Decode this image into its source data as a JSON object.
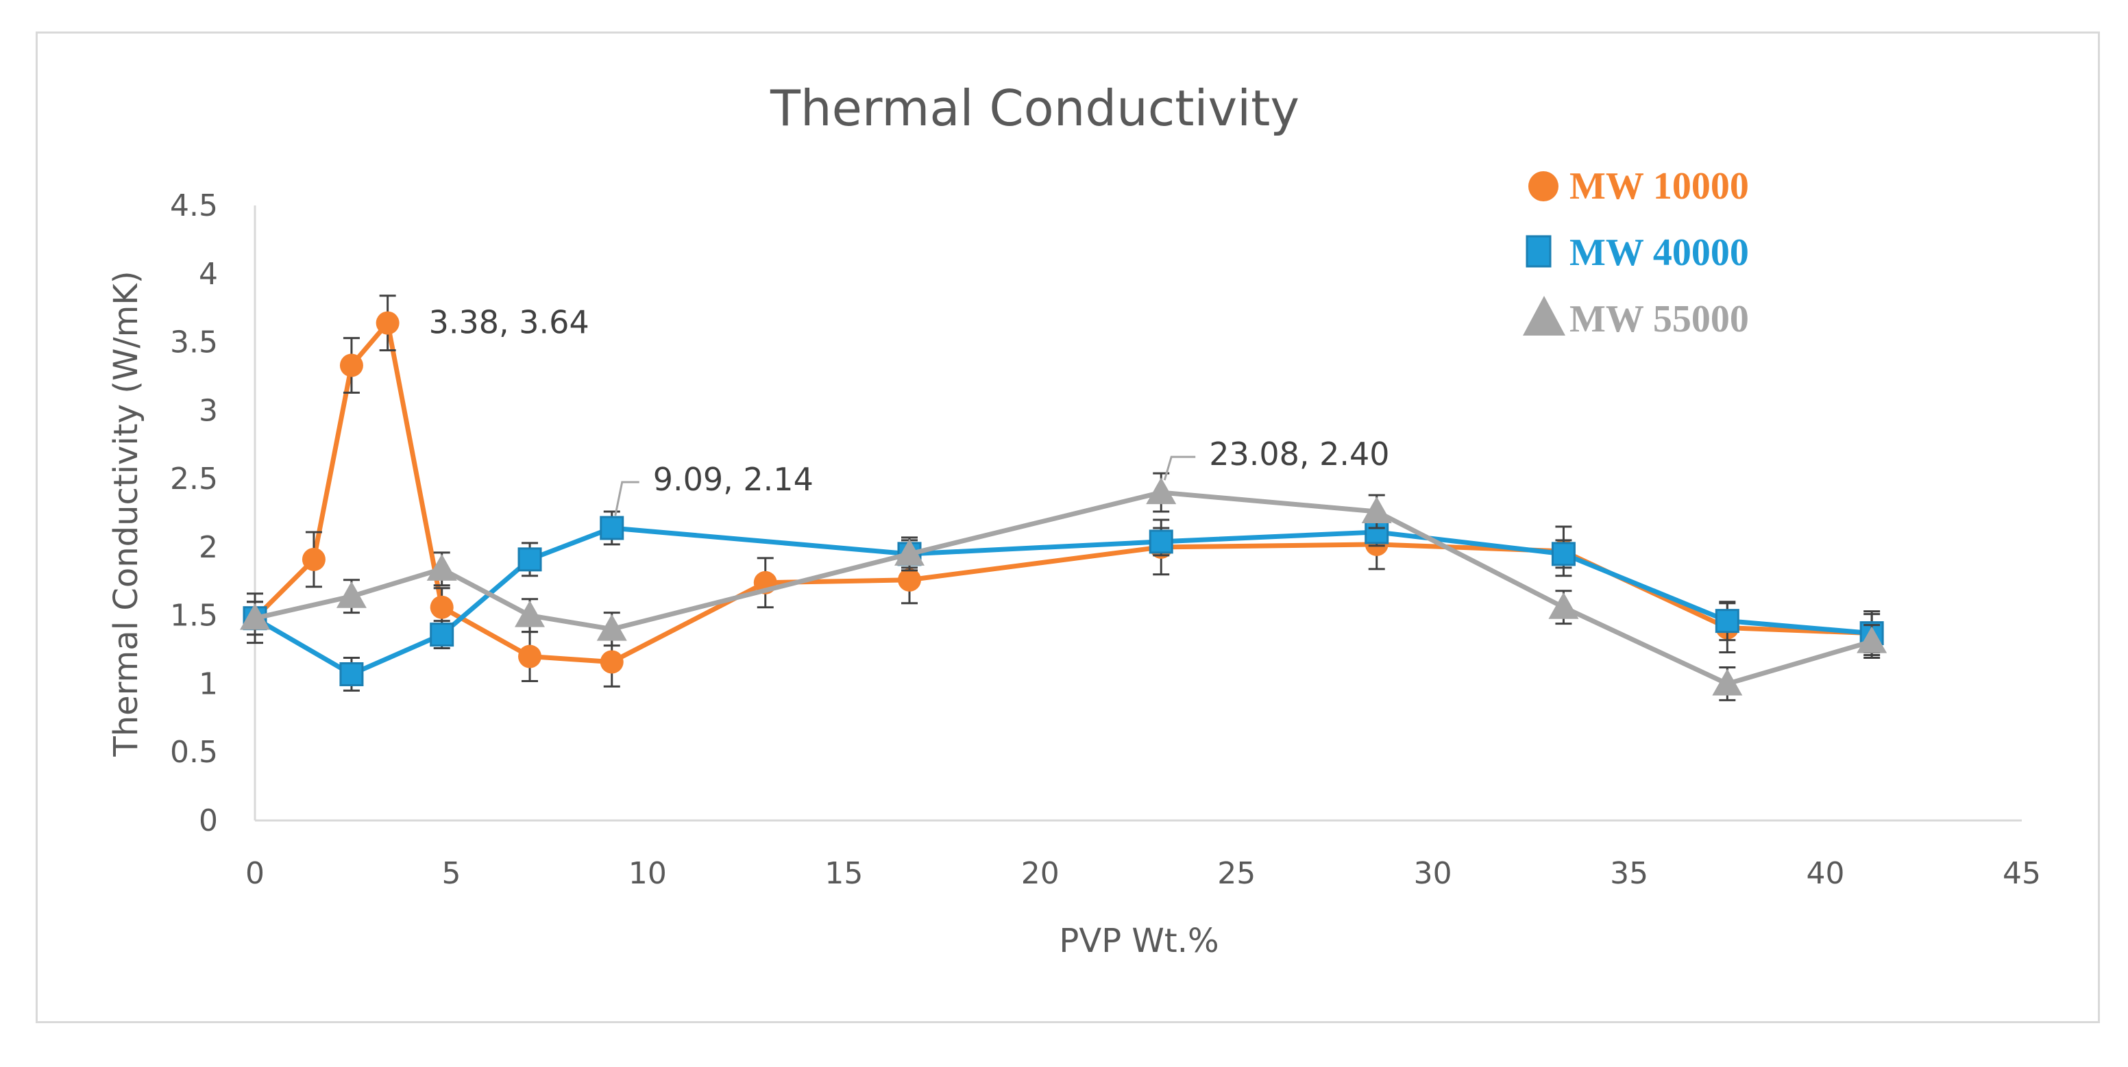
{
  "chart_data": {
    "type": "line",
    "title": "Thermal Conductivity",
    "xlabel": "PVP Wt.%",
    "ylabel": "Thermal Conductivity (W/mK)",
    "xlim": [
      0,
      45
    ],
    "ylim": [
      0,
      4.5
    ],
    "x_ticks": [
      "0",
      "5",
      "10",
      "15",
      "20",
      "25",
      "30",
      "35",
      "40",
      "45"
    ],
    "y_ticks": [
      "0",
      "0.5",
      "1",
      "1.5",
      "2",
      "2.5",
      "3",
      "3.5",
      "4",
      "4.5"
    ],
    "grid": false,
    "legend_position": "top-right",
    "series": [
      {
        "name": "MW 10000",
        "color": "#f5822e",
        "marker": "circle",
        "x": [
          0,
          1.5,
          2.46,
          3.38,
          4.76,
          7.0,
          9.09,
          13.0,
          16.67,
          23.08,
          28.57,
          33.33,
          37.5,
          41.18
        ],
        "y": [
          1.48,
          1.91,
          3.33,
          3.64,
          1.56,
          1.2,
          1.16,
          1.74,
          1.76,
          2.0,
          2.02,
          1.97,
          1.41,
          1.37
        ],
        "err": [
          0.18,
          0.2,
          0.2,
          0.2,
          0.14,
          0.18,
          0.18,
          0.18,
          0.17,
          0.2,
          0.18,
          0.18,
          0.18,
          0.16
        ]
      },
      {
        "name": "MW 40000",
        "color": "#1e9ad6",
        "marker": "square",
        "x": [
          0,
          2.46,
          4.76,
          7.0,
          9.09,
          16.67,
          23.08,
          28.57,
          33.33,
          37.5,
          41.18
        ],
        "y": [
          1.48,
          1.07,
          1.36,
          1.91,
          2.14,
          1.95,
          2.04,
          2.11,
          1.95,
          1.46,
          1.37
        ],
        "err": [
          0.12,
          0.12,
          0.1,
          0.12,
          0.12,
          0.1,
          0.1,
          0.1,
          0.1,
          0.14,
          0.14
        ]
      },
      {
        "name": "MW 55000",
        "color": "#a5a5a5",
        "marker": "triangle",
        "x": [
          0,
          2.46,
          4.76,
          7.0,
          9.09,
          16.67,
          23.08,
          28.57,
          33.33,
          37.5,
          41.18
        ],
        "y": [
          1.48,
          1.64,
          1.84,
          1.5,
          1.4,
          1.95,
          2.4,
          2.26,
          1.56,
          1.0,
          1.31
        ],
        "err": [
          0.12,
          0.12,
          0.12,
          0.12,
          0.12,
          0.12,
          0.14,
          0.12,
          0.12,
          0.12,
          0.12
        ]
      }
    ],
    "annotations": [
      {
        "text": "3.38, 3.64",
        "x": 3.38,
        "y": 3.64
      },
      {
        "text": "9.09, 2.14",
        "x": 9.09,
        "y": 2.14
      },
      {
        "text": "23.08, 2.40",
        "x": 23.08,
        "y": 2.4
      }
    ]
  }
}
